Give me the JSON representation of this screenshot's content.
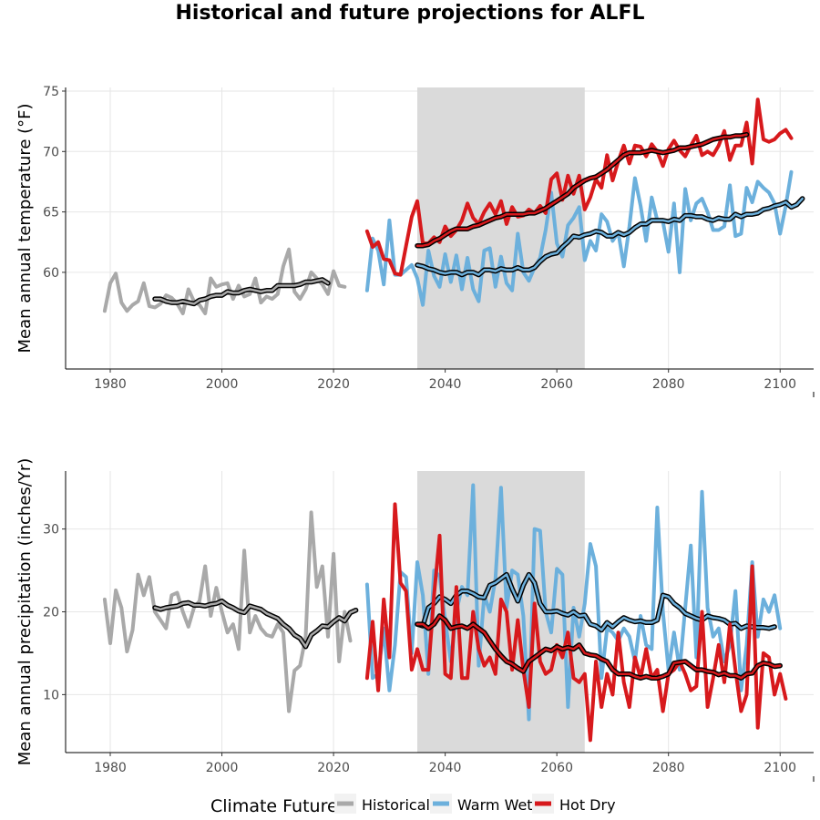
{
  "title": "Historical and future projections for ALFL",
  "legend": {
    "title": "Climate Future",
    "entries": [
      {
        "name": "Historical",
        "color": "#a9a9a9"
      },
      {
        "name": "Warm Wet",
        "color": "#6cb0dc"
      },
      {
        "name": "Hot Dry",
        "color": "#d7191c"
      }
    ],
    "position": "bottom"
  },
  "chart_data": [
    {
      "type": "line",
      "ylabel": "Mean annual temperature (°F)",
      "xlabel": "",
      "xlim": [
        1972,
        2106
      ],
      "ylim": [
        52,
        75.3
      ],
      "xticks": [
        1980,
        2000,
        2020,
        2040,
        2060,
        2080,
        2100
      ],
      "yticks": [
        60,
        65,
        70,
        75
      ],
      "grid": true,
      "shaded_period": [
        2035,
        2065
      ],
      "series": [
        {
          "name": "Historical",
          "x_start": 1979,
          "values": [
            56.8,
            59.1,
            59.9,
            57.5,
            56.8,
            57.3,
            57.6,
            59.1,
            57.2,
            57.1,
            57.4,
            58.1,
            57.9,
            57.4,
            56.6,
            58.6,
            57.6,
            57.3,
            56.6,
            59.5,
            58.8,
            59.0,
            59.1,
            57.8,
            58.9,
            58.0,
            58.2,
            59.5,
            57.5,
            58.0,
            57.8,
            58.2,
            60.5,
            61.9,
            58.4,
            57.8,
            58.6,
            60.0,
            59.5,
            59.0,
            58.2,
            60.1,
            58.9,
            58.8
          ]
        },
        {
          "name": "Historical smoothed",
          "x_start": 1988,
          "values": [
            57.8,
            57.8,
            57.6,
            57.5,
            57.5,
            57.6,
            57.5,
            57.4,
            57.7,
            57.8,
            58.0,
            58.1,
            58.1,
            58.4,
            58.3,
            58.3,
            58.5,
            58.6,
            58.5,
            58.4,
            58.5,
            58.5,
            58.9,
            58.9,
            58.9,
            58.9,
            59.0,
            59.2,
            59.2,
            59.3,
            59.4,
            59.1
          ]
        },
        {
          "name": "Warm Wet",
          "x_start": 2026,
          "values": [
            58.5,
            62.8,
            61.8,
            59.0,
            64.3,
            59.8,
            59.8,
            60.2,
            60.6,
            59.5,
            57.3,
            61.8,
            59.7,
            58.8,
            61.5,
            59.2,
            61.4,
            58.6,
            61.2,
            58.6,
            57.6,
            61.8,
            62.0,
            58.8,
            61.3,
            59.1,
            58.5,
            63.2,
            60.0,
            59.3,
            60.4,
            61.2,
            63.5,
            66.6,
            62.4,
            61.3,
            63.9,
            64.5,
            65.4,
            61.0,
            62.6,
            61.8,
            64.8,
            64.2,
            62.6,
            63.3,
            60.5,
            63.8,
            67.8,
            65.5,
            62.6,
            66.2,
            64.3,
            64.2,
            61.7,
            65.7,
            60.0,
            66.9,
            64.3,
            65.7,
            66.1,
            65.0,
            63.5,
            63.5,
            63.8,
            67.2,
            63.0,
            63.2,
            67.0,
            65.8,
            67.5,
            67.0,
            66.6,
            65.7,
            63.2,
            65.5,
            68.3
          ]
        },
        {
          "name": "Warm Wet smoothed",
          "x_start": 2035,
          "values": [
            60.6,
            60.5,
            60.3,
            60.2,
            60.0,
            59.9,
            60.0,
            60.0,
            59.8,
            60.0,
            60.0,
            59.8,
            60.2,
            60.2,
            60.1,
            60.3,
            60.2,
            60.2,
            60.4,
            60.2,
            60.2,
            60.4,
            60.9,
            61.3,
            61.5,
            61.6,
            62.1,
            62.5,
            63.0,
            62.9,
            63.1,
            63.2,
            63.4,
            63.3,
            63.0,
            63.0,
            63.3,
            63.1,
            63.3,
            63.7,
            64.0,
            64.0,
            64.3,
            64.3,
            64.3,
            64.2,
            64.4,
            64.3,
            64.7,
            64.7,
            64.6,
            64.6,
            64.4,
            64.3,
            64.5,
            64.4,
            64.4,
            64.8,
            64.6,
            64.8,
            64.8,
            64.9,
            65.2,
            65.3,
            65.5,
            65.6,
            65.8,
            65.4,
            65.6,
            66.1
          ]
        },
        {
          "name": "Hot Dry",
          "x_start": 2026,
          "values": [
            63.4,
            62.1,
            62.5,
            61.1,
            61.0,
            59.9,
            59.8,
            62.2,
            64.6,
            65.9,
            62.4,
            62.4,
            62.9,
            62.5,
            63.8,
            63.0,
            63.5,
            64.3,
            65.7,
            64.5,
            64.0,
            65.0,
            65.7,
            64.8,
            65.9,
            64.0,
            65.4,
            64.6,
            64.7,
            65.2,
            64.9,
            65.5,
            64.9,
            67.7,
            68.2,
            66.0,
            68.0,
            66.5,
            68.0,
            65.2,
            66.2,
            67.7,
            67.0,
            69.7,
            67.6,
            69.2,
            70.5,
            69.0,
            70.5,
            70.4,
            69.6,
            70.6,
            70.0,
            68.8,
            70.2,
            70.9,
            70.1,
            69.6,
            70.5,
            71.3,
            69.7,
            70.0,
            69.7,
            70.5,
            71.7,
            69.3,
            70.5,
            70.5,
            72.4,
            69.0,
            74.3,
            71.0,
            70.8,
            71.0,
            71.5,
            71.8,
            71.1
          ]
        },
        {
          "name": "Hot Dry smoothed",
          "x_start": 2035,
          "values": [
            62.2,
            62.2,
            62.3,
            62.6,
            62.8,
            63.1,
            63.4,
            63.6,
            63.6,
            63.6,
            63.8,
            63.9,
            64.1,
            64.3,
            64.5,
            64.6,
            64.8,
            64.8,
            64.8,
            64.8,
            64.9,
            64.9,
            65.1,
            65.3,
            65.6,
            65.9,
            66.2,
            66.5,
            67.0,
            67.3,
            67.6,
            67.8,
            67.9,
            68.2,
            68.5,
            68.9,
            69.3,
            69.7,
            69.9,
            69.9,
            69.9,
            70.0,
            70.1,
            70.0,
            69.9,
            70.0,
            70.1,
            70.3,
            70.3,
            70.4,
            70.5,
            70.6,
            70.8,
            71.0,
            71.1,
            71.2,
            71.2,
            71.3,
            71.3,
            71.4
          ]
        }
      ]
    },
    {
      "type": "line",
      "ylabel": "Mean annual precipitation (inches/Yr)",
      "xlabel": "",
      "xlim": [
        1972,
        2106
      ],
      "ylim": [
        3,
        37
      ],
      "xticks": [
        1980,
        2000,
        2020,
        2040,
        2060,
        2080,
        2100
      ],
      "yticks": [
        10,
        20,
        30
      ],
      "grid": true,
      "shaded_period": [
        2035,
        2065
      ],
      "series": [
        {
          "name": "Historical",
          "x_start": 1979,
          "values": [
            21.5,
            16.2,
            22.6,
            20.5,
            15.2,
            17.8,
            24.5,
            22.0,
            24.2,
            20.0,
            19.0,
            18.0,
            22.0,
            22.3,
            20.0,
            18.2,
            20.5,
            21.3,
            25.5,
            19.5,
            22.9,
            20.0,
            17.5,
            18.5,
            15.5,
            27.4,
            17.5,
            19.5,
            18.0,
            17.2,
            17.0,
            18.5,
            17.5,
            8.0,
            12.9,
            13.5,
            17.0,
            32.0,
            23.0,
            25.5,
            17.0,
            27.0,
            14.0,
            20.0,
            16.5
          ]
        },
        {
          "name": "Historical smoothed",
          "x_start": 1988,
          "values": [
            20.5,
            20.3,
            20.5,
            20.6,
            20.7,
            21.0,
            21.1,
            20.8,
            20.8,
            20.7,
            20.9,
            21.0,
            21.3,
            20.8,
            20.5,
            20.1,
            19.9,
            20.7,
            20.5,
            20.3,
            19.8,
            19.5,
            19.2,
            18.5,
            18.0,
            17.2,
            16.8,
            15.8,
            17.2,
            17.7,
            18.3,
            18.2,
            18.8,
            19.3,
            18.9,
            19.9,
            20.2
          ]
        },
        {
          "name": "Warm Wet",
          "x_start": 2026,
          "values": [
            23.3,
            12.0,
            12.5,
            18.0,
            10.5,
            16.0,
            24.8,
            24.2,
            15.0,
            26.0,
            22.0,
            12.5,
            25.0,
            24.3,
            19.0,
            14.0,
            20.0,
            23.0,
            22.0,
            35.3,
            13.5,
            22.0,
            20.0,
            24.0,
            35.0,
            20.5,
            25.0,
            24.5,
            19.5,
            7.0,
            30.0,
            29.8,
            20.0,
            17.5,
            25.2,
            24.5,
            8.5,
            20.5,
            17.0,
            21.0,
            28.2,
            25.5,
            12.0,
            18.0,
            17.5,
            16.5,
            18.0,
            17.0,
            14.0,
            19.5,
            16.0,
            15.5,
            32.6,
            20.0,
            13.0,
            17.5,
            13.0,
            20.5,
            28.0,
            14.5,
            34.5,
            20.5,
            17.0,
            18.0,
            14.0,
            16.0,
            22.5,
            10.5,
            16.0,
            26.0,
            17.0,
            21.5,
            20.0,
            22.0,
            18.0
          ]
        },
        {
          "name": "Warm Wet smoothed",
          "x_start": 2035,
          "values": [
            18.5,
            18.3,
            20.5,
            21.0,
            21.8,
            21.5,
            21.0,
            22.0,
            22.5,
            22.5,
            22.2,
            21.8,
            21.7,
            23.2,
            23.5,
            24.0,
            24.5,
            22.8,
            21.3,
            23.2,
            24.5,
            23.5,
            21.0,
            20.0,
            20.0,
            20.1,
            19.8,
            19.6,
            20.0,
            19.5,
            19.6,
            18.5,
            18.3,
            17.8,
            18.7,
            18.2,
            18.8,
            19.3,
            19.0,
            18.8,
            18.9,
            18.7,
            18.7,
            19.0,
            22.0,
            21.8,
            21.0,
            20.5,
            19.8,
            19.5,
            19.2,
            19.0,
            19.5,
            19.3,
            19.2,
            19.0,
            18.5,
            18.6,
            18.0,
            18.3,
            18.2,
            18.1,
            18.1,
            18.0,
            18.2
          ]
        },
        {
          "name": "Hot Dry",
          "x_start": 2026,
          "values": [
            12.0,
            18.8,
            10.5,
            21.5,
            14.5,
            33.0,
            23.5,
            22.5,
            13.0,
            15.5,
            13.0,
            13.0,
            22.0,
            29.2,
            12.5,
            12.0,
            23.0,
            12.0,
            12.0,
            20.0,
            15.5,
            13.5,
            14.5,
            12.5,
            21.5,
            20.0,
            13.0,
            19.0,
            13.0,
            8.5,
            21.0,
            14.0,
            12.5,
            13.0,
            16.0,
            14.5,
            17.5,
            12.0,
            11.5,
            12.5,
            4.5,
            14.0,
            8.5,
            12.5,
            10.0,
            17.5,
            11.5,
            8.5,
            14.5,
            12.0,
            15.5,
            12.0,
            13.0,
            8.0,
            12.5,
            13.0,
            14.0,
            12.5,
            10.5,
            11.0,
            20.0,
            8.5,
            12.0,
            16.0,
            11.5,
            18.5,
            13.0,
            8.0,
            10.0,
            25.5,
            6.0,
            15.0,
            14.5,
            10.0,
            12.5,
            9.5
          ]
        },
        {
          "name": "Hot Dry smoothed",
          "x_start": 2035,
          "values": [
            18.5,
            18.5,
            18.0,
            18.5,
            19.5,
            19.0,
            18.0,
            18.2,
            18.3,
            18.0,
            18.5,
            18.0,
            17.5,
            16.5,
            15.5,
            14.7,
            14.0,
            13.7,
            13.2,
            12.8,
            14.0,
            14.5,
            15.0,
            15.5,
            15.3,
            15.8,
            15.5,
            15.7,
            15.5,
            16.0,
            15.0,
            14.8,
            14.7,
            14.3,
            14.0,
            13.0,
            12.5,
            12.5,
            12.5,
            12.2,
            12.0,
            12.2,
            12.0,
            12.0,
            12.2,
            12.5,
            13.8,
            13.9,
            14.0,
            13.5,
            13.0,
            13.0,
            12.8,
            12.7,
            12.4,
            12.6,
            12.3,
            12.3,
            12.0,
            12.5,
            12.6,
            13.5,
            13.8,
            13.7,
            13.4,
            13.5
          ]
        }
      ]
    }
  ]
}
